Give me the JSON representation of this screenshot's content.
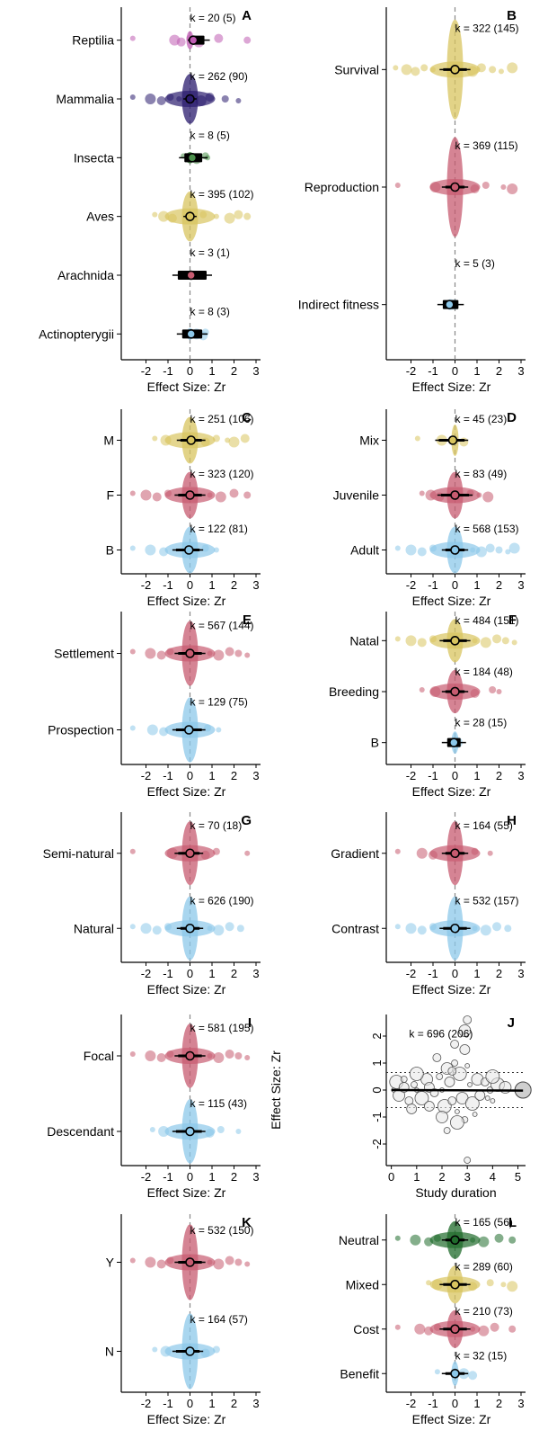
{
  "chart_data": [
    {
      "type": "forest",
      "panel": "A",
      "xlabel": "Effect Size: Zr",
      "xlim": [
        -3,
        3
      ],
      "xticks": [
        -2,
        -1,
        0,
        1,
        2,
        3
      ],
      "reference_line": 0,
      "categories": [
        {
          "name": "Reptilia",
          "k": "k = 20 (5)",
          "estimate": 0.15,
          "ci": [
            -0.1,
            0.9
          ],
          "points": [
            -2.6,
            -0.7,
            -0.4,
            0.0,
            0.2,
            0.4,
            1.3,
            2.6
          ],
          "color": "#c05cb3"
        },
        {
          "name": "Mammalia",
          "k": "k = 262 (90)",
          "estimate": 0.0,
          "ci": [
            -0.3,
            0.3
          ],
          "points": [
            -2.6,
            -1.8,
            -1.3,
            -0.9,
            -0.5,
            0.5,
            0.9,
            1.6,
            2.2
          ],
          "color": "#2a1b6e"
        },
        {
          "name": "Insecta",
          "k": "k = 8 (5)",
          "estimate": 0.1,
          "ci": [
            -0.5,
            0.8
          ],
          "points": [
            -0.3,
            0.0,
            0.3,
            0.7,
            0.8
          ],
          "color": "#4b8f4b"
        },
        {
          "name": "Aves",
          "k": "k = 395 (102)",
          "estimate": 0.0,
          "ci": [
            -0.3,
            0.3
          ],
          "points": [
            -1.6,
            -1.2,
            -0.8,
            0.6,
            1.2,
            1.8,
            2.2,
            2.6
          ],
          "color": "#d8c45f"
        },
        {
          "name": "Arachnida",
          "k": "k = 3 (1)",
          "estimate": 0.05,
          "ci": [
            -0.8,
            1.0
          ],
          "points": [
            0.0
          ],
          "color": "#c75b70"
        },
        {
          "name": "Actinopterygii",
          "k": "k = 8 (3)",
          "estimate": 0.05,
          "ci": [
            -0.6,
            0.8
          ],
          "points": [
            -0.2,
            0.3,
            0.6,
            0.7
          ],
          "color": "#8cc8ea"
        }
      ]
    },
    {
      "type": "forest",
      "panel": "B",
      "xlabel": "Effect Size: Zr",
      "xlim": [
        -3,
        3
      ],
      "xticks": [
        -2,
        -1,
        0,
        1,
        2,
        3
      ],
      "reference_line": 0,
      "categories": [
        {
          "name": "Survival",
          "k": "k = 322 (145)",
          "estimate": 0.0,
          "ci": [
            -0.7,
            0.7
          ],
          "points": [
            -2.7,
            -2.2,
            -1.8,
            -1.4,
            -1.0,
            0.8,
            1.2,
            1.7,
            2.1,
            2.6
          ],
          "color": "#d8c45f"
        },
        {
          "name": "Reproduction",
          "k": "k = 369 (115)",
          "estimate": 0.0,
          "ci": [
            -0.6,
            0.6
          ],
          "points": [
            -2.6,
            -0.9,
            0.9,
            1.4,
            2.2,
            2.6
          ],
          "color": "#c75b70"
        },
        {
          "name": "Indirect fitness",
          "k": "k = 5 (3)",
          "estimate": -0.25,
          "ci": [
            -0.8,
            0.4
          ],
          "points": [
            -0.3,
            -0.2
          ],
          "color": "#8cc8ea"
        }
      ]
    },
    {
      "type": "forest",
      "panel": "C",
      "xlabel": "Effect Size: Zr",
      "xlim": [
        -3,
        3
      ],
      "xticks": [
        -2,
        -1,
        0,
        1,
        2,
        3
      ],
      "reference_line": 0,
      "categories": [
        {
          "name": "M",
          "k": "k = 251 (106)",
          "estimate": 0.05,
          "ci": [
            -0.6,
            0.7
          ],
          "points": [
            -1.6,
            -1.1,
            0.7,
            1.2,
            1.7,
            2.0,
            2.5
          ],
          "color": "#d8c45f"
        },
        {
          "name": "F",
          "k": "k = 323 (120)",
          "estimate": 0.0,
          "ci": [
            -0.7,
            0.7
          ],
          "points": [
            -2.6,
            -2.0,
            -1.5,
            -1.0,
            0.9,
            1.4,
            2.0,
            2.6
          ],
          "color": "#c75b70"
        },
        {
          "name": "B",
          "k": "k = 122 (81)",
          "estimate": -0.05,
          "ci": [
            -0.8,
            0.6
          ],
          "points": [
            -2.6,
            -1.8,
            -1.2,
            0.7,
            1.2
          ],
          "color": "#8cc8ea"
        }
      ]
    },
    {
      "type": "forest",
      "panel": "D",
      "xlabel": "Effect Size: Zr",
      "xlim": [
        -3,
        3
      ],
      "xticks": [
        -2,
        -1,
        0,
        1,
        2,
        3
      ],
      "reference_line": 0,
      "categories": [
        {
          "name": "Mix",
          "k": "k = 45 (23)",
          "estimate": -0.1,
          "ci": [
            -0.9,
            0.6
          ],
          "points": [
            -1.7,
            -0.6,
            0.4
          ],
          "color": "#d8c45f"
        },
        {
          "name": "Juvenile",
          "k": "k = 83 (49)",
          "estimate": 0.0,
          "ci": [
            -0.8,
            0.8
          ],
          "points": [
            -1.5,
            -1.1,
            -0.7,
            0.7,
            1.1,
            1.5
          ],
          "color": "#c75b70"
        },
        {
          "name": "Adult",
          "k": "k = 568 (153)",
          "estimate": 0.0,
          "ci": [
            -0.6,
            0.6
          ],
          "points": [
            -2.6,
            -2.0,
            -1.5,
            -1.0,
            0.8,
            1.2,
            1.6,
            2.0,
            2.4,
            2.7
          ],
          "color": "#8cc8ea"
        }
      ]
    },
    {
      "type": "forest",
      "panel": "E",
      "xlabel": "Effect Size: Zr",
      "xlim": [
        -3,
        3
      ],
      "xticks": [
        -2,
        -1,
        0,
        1,
        2,
        3
      ],
      "reference_line": 0,
      "categories": [
        {
          "name": "Settlement",
          "k": "k = 567 (144)",
          "estimate": 0.0,
          "ci": [
            -0.7,
            0.7
          ],
          "points": [
            -2.6,
            -1.8,
            -1.3,
            -0.9,
            0.9,
            1.3,
            1.8,
            2.2,
            2.6
          ],
          "color": "#c75b70"
        },
        {
          "name": "Prospection",
          "k": "k = 129 (75)",
          "estimate": -0.05,
          "ci": [
            -0.8,
            0.7
          ],
          "points": [
            -2.6,
            -1.7,
            -1.2,
            0.8,
            1.3
          ],
          "color": "#8cc8ea"
        }
      ]
    },
    {
      "type": "forest",
      "panel": "F",
      "xlabel": "Effect Size: Zr",
      "xlim": [
        -3,
        3
      ],
      "xticks": [
        -2,
        -1,
        0,
        1,
        2,
        3
      ],
      "reference_line": 0,
      "categories": [
        {
          "name": "Natal",
          "k": "k = 484 (151)",
          "estimate": 0.0,
          "ci": [
            -0.7,
            0.7
          ],
          "points": [
            -2.6,
            -2.0,
            -1.5,
            -1.0,
            0.9,
            1.4,
            1.9,
            2.3,
            2.7
          ],
          "color": "#d8c45f"
        },
        {
          "name": "Breeding",
          "k": "k = 184 (48)",
          "estimate": 0.0,
          "ci": [
            -0.6,
            0.6
          ],
          "points": [
            -1.5,
            -0.9,
            0.9,
            1.7,
            2.0
          ],
          "color": "#c75b70"
        },
        {
          "name": "B",
          "k": "k = 28 (15)",
          "estimate": -0.05,
          "ci": [
            -0.6,
            0.5
          ],
          "points": [
            -0.2,
            0.1
          ],
          "color": "#8cc8ea"
        }
      ]
    },
    {
      "type": "forest",
      "panel": "G",
      "xlabel": "Effect Size: Zr",
      "xlim": [
        -3,
        3
      ],
      "xticks": [
        -2,
        -1,
        0,
        1,
        2,
        3
      ],
      "reference_line": 0,
      "categories": [
        {
          "name": "Semi-natural",
          "k": "k = 70 (18)",
          "estimate": 0.0,
          "ci": [
            -0.7,
            0.6
          ],
          "points": [
            -2.6,
            -0.8,
            0.7,
            1.2,
            2.6
          ],
          "color": "#c75b70"
        },
        {
          "name": "Natural",
          "k": "k = 626 (190)",
          "estimate": 0.0,
          "ci": [
            -0.6,
            0.6
          ],
          "points": [
            -2.6,
            -2.0,
            -1.5,
            -1.0,
            0.9,
            1.3,
            1.8,
            2.3
          ],
          "color": "#8cc8ea"
        }
      ]
    },
    {
      "type": "forest",
      "panel": "H",
      "xlabel": "Effect Size: Zr",
      "xlim": [
        -3,
        3
      ],
      "xticks": [
        -2,
        -1,
        0,
        1,
        2,
        3
      ],
      "reference_line": 0,
      "categories": [
        {
          "name": "Gradient",
          "k": "k = 164 (55)",
          "estimate": 0.0,
          "ci": [
            -0.6,
            0.6
          ],
          "points": [
            -2.6,
            -1.5,
            -1.0,
            0.9,
            1.6
          ],
          "color": "#c75b70"
        },
        {
          "name": "Contrast",
          "k": "k = 532 (157)",
          "estimate": 0.0,
          "ci": [
            -0.7,
            0.7
          ],
          "points": [
            -2.6,
            -2.0,
            -1.5,
            -1.0,
            0.9,
            1.4,
            1.9,
            2.4
          ],
          "color": "#8cc8ea"
        }
      ]
    },
    {
      "type": "forest",
      "panel": "I",
      "xlabel": "Effect Size: Zr",
      "xlim": [
        -3,
        3
      ],
      "xticks": [
        -2,
        -1,
        0,
        1,
        2,
        3
      ],
      "reference_line": 0,
      "categories": [
        {
          "name": "Focal",
          "k": "k = 581 (195)",
          "estimate": 0.0,
          "ci": [
            -0.7,
            0.7
          ],
          "points": [
            -2.6,
            -1.8,
            -1.3,
            -0.9,
            0.9,
            1.3,
            1.8,
            2.2,
            2.6
          ],
          "color": "#c75b70"
        },
        {
          "name": "Descendant",
          "k": "k = 115 (43)",
          "estimate": 0.0,
          "ci": [
            -0.8,
            0.7
          ],
          "points": [
            -1.7,
            -1.2,
            0.9,
            1.4,
            2.2
          ],
          "color": "#8cc8ea"
        }
      ]
    },
    {
      "type": "scatter",
      "panel": "J",
      "xlabel": "Study duration",
      "ylabel": "Effect Size: Zr",
      "xlim": [
        -0.2,
        5.3
      ],
      "ylim": [
        -2.8,
        2.8
      ],
      "xticks": [
        0,
        1,
        2,
        3,
        4,
        5
      ],
      "yticks": [
        -2,
        -1,
        0,
        1,
        2
      ],
      "annotation": "k = 696 (206)",
      "reference_lines": [
        -0.65,
        0,
        0.65
      ],
      "fit": {
        "x": [
          0,
          5.2
        ],
        "y": [
          0.0,
          -0.02
        ]
      },
      "x": [
        0.1,
        0.2,
        0.3,
        0.5,
        0.7,
        0.9,
        1.0,
        1.2,
        1.4,
        1.5,
        1.7,
        1.9,
        2.0,
        2.1,
        2.2,
        2.3,
        2.4,
        2.5,
        2.6,
        2.7,
        2.8,
        2.9,
        3.0,
        3.0,
        3.1,
        3.2,
        3.4,
        3.5,
        3.7,
        3.9,
        4.0,
        4.2,
        4.5,
        5.2,
        2.5,
        2.9,
        3.0,
        1.0,
        2.0,
        0.8,
        1.8,
        2.2,
        3.3,
        4.0,
        2.9,
        1.5,
        2.4,
        0.5,
        3.8,
        2.6
      ],
      "y": [
        0.0,
        0.3,
        -0.2,
        0.1,
        -0.4,
        0.2,
        0.0,
        -0.3,
        0.4,
        0.1,
        -0.1,
        0.5,
        0.0,
        -0.6,
        0.8,
        0.3,
        -0.4,
        1.0,
        -0.8,
        0.6,
        -0.3,
        1.5,
        2.6,
        -2.6,
        0.2,
        -0.5,
        0.4,
        -0.2,
        0.3,
        0.0,
        -0.4,
        0.2,
        0.1,
        0.0,
        1.7,
        -1.1,
        0.9,
        0.6,
        -1.0,
        -0.7,
        1.2,
        -1.5,
        -0.9,
        0.5,
        2.2,
        -0.6,
        0.7,
        0.4,
        -0.3,
        -1.2
      ]
    },
    {
      "type": "forest",
      "panel": "K",
      "xlabel": "Effect Size: Zr",
      "xlim": [
        -3,
        3
      ],
      "xticks": [
        -2,
        -1,
        0,
        1,
        2,
        3
      ],
      "reference_line": 0,
      "categories": [
        {
          "name": "Y",
          "k": "k = 532 (150)",
          "estimate": 0.0,
          "ci": [
            -0.7,
            0.7
          ],
          "points": [
            -2.6,
            -1.8,
            -1.3,
            -0.9,
            0.9,
            1.3,
            1.8,
            2.2,
            2.6
          ],
          "color": "#c75b70"
        },
        {
          "name": "N",
          "k": "k = 164 (57)",
          "estimate": 0.0,
          "ci": [
            -0.8,
            0.6
          ],
          "points": [
            -1.6,
            -1.1,
            0.7,
            1.2
          ],
          "color": "#8cc8ea"
        }
      ]
    },
    {
      "type": "forest",
      "panel": "L",
      "xlabel": "Effect Size: Zr",
      "xlim": [
        -3,
        3
      ],
      "xticks": [
        -2,
        -1,
        0,
        1,
        2,
        3
      ],
      "reference_line": 0,
      "categories": [
        {
          "name": "Neutral",
          "k": "k = 165 (56)",
          "estimate": 0.0,
          "ci": [
            -0.6,
            0.6
          ],
          "points": [
            -2.6,
            -1.8,
            -1.2,
            -0.8,
            0.8,
            1.3,
            2.0,
            2.6
          ],
          "color": "#1f6b2b"
        },
        {
          "name": "Mixed",
          "k": "k = 289 (60)",
          "estimate": 0.0,
          "ci": [
            -0.7,
            0.7
          ],
          "points": [
            -1.2,
            -0.8,
            0.8,
            1.6,
            2.2,
            2.6
          ],
          "color": "#d8c45f"
        },
        {
          "name": "Cost",
          "k": "k = 210 (73)",
          "estimate": 0.0,
          "ci": [
            -0.7,
            0.7
          ],
          "points": [
            -2.6,
            -1.6,
            -1.2,
            -0.8,
            0.8,
            1.3,
            1.8,
            2.6
          ],
          "color": "#c75b70"
        },
        {
          "name": "Benefit",
          "k": "k = 32 (15)",
          "estimate": 0.0,
          "ci": [
            -0.6,
            0.6
          ],
          "points": [
            -0.8,
            0.4,
            0.8
          ],
          "color": "#8cc8ea"
        }
      ]
    }
  ]
}
